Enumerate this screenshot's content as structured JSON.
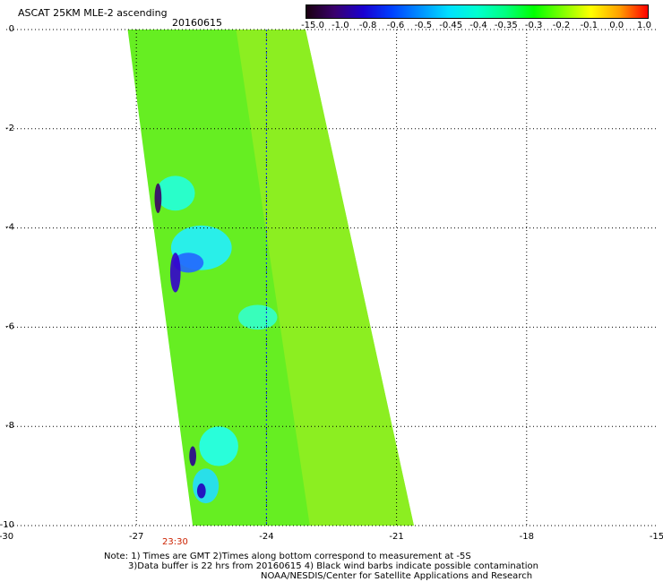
{
  "header": {
    "title": "ASCAT 25KM MLE-2 ascending",
    "date": "20160615"
  },
  "colorbar": {
    "labels": [
      "-15.0",
      "-1.0",
      "-0.8",
      "-0.6",
      "-0.5",
      "-0.45",
      "-0.4",
      "-0.35",
      "-0.3",
      "-0.2",
      "-0.1",
      "0.0",
      "1.0"
    ],
    "colors": [
      "#1a0010",
      "#3a006e",
      "#1a00d0",
      "#0040ff",
      "#0090ff",
      "#00e0ff",
      "#00ffd0",
      "#00ff80",
      "#00ff00",
      "#7fff00",
      "#ffff00",
      "#ffa000",
      "#ff0000"
    ]
  },
  "map": {
    "x_labels": [
      "-30",
      "-27",
      "-24",
      "-21",
      "-18",
      "-15"
    ],
    "y_labels": [
      "0",
      "-2",
      "-4",
      "-6",
      "-8",
      "-10"
    ],
    "x_range": [
      -30,
      -15
    ],
    "y_range": [
      0,
      -10
    ],
    "swath_color": "#66ee22",
    "time_label": "23:30"
  },
  "notes": {
    "line1": "Note: 1) Times are GMT 2)Times along bottom correspond to measurement at -5S",
    "line2": "3)Data buffer is 22 hrs from 20160615 4) Black wind barbs indicate possible contamination",
    "line3": "NOAA/NESDIS/Center for Satellite Applications and Research"
  }
}
